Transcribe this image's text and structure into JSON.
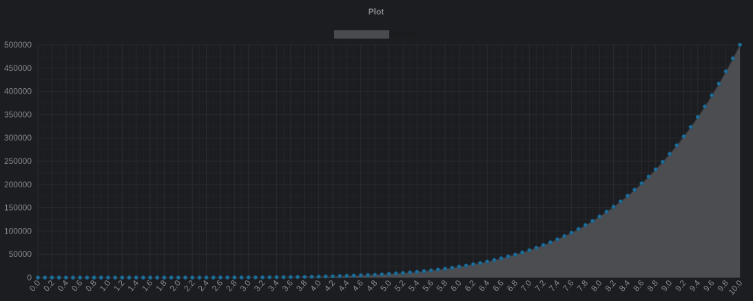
{
  "chart_data": {
    "type": "area",
    "title": "Plot",
    "xlabel": "",
    "ylabel": "",
    "legend": {
      "position": "top-center",
      "entries": [
        {
          "name": "(x^6)/2",
          "swatch_color": "#4a4b4f"
        }
      ]
    },
    "series": [
      {
        "name": "(x^6)/2",
        "formula": "(x^6)/2",
        "x_start": 0,
        "x_end": 10,
        "x_step": 0.1,
        "fill_color": "#4c4d51",
        "line_color": "#2c2d31",
        "point_color": "#1f6f9a"
      }
    ],
    "xlim": [
      0,
      10
    ],
    "ylim": [
      0,
      500000
    ],
    "y_ticks": [
      "0",
      "50000",
      "100000",
      "150000",
      "200000",
      "250000",
      "300000",
      "350000",
      "400000",
      "450000",
      "500000"
    ],
    "x_tick_labels": [
      "0.0",
      "0.2",
      "0.4",
      "0.6",
      "0.8",
      "1.0",
      "1.2",
      "1.4",
      "1.6",
      "1.8",
      "2.0",
      "2.2",
      "2.4",
      "2.6",
      "2.8",
      "3.0",
      "3.2",
      "3.4",
      "3.6",
      "3.8",
      "4.0",
      "4.2",
      "4.4",
      "4.6",
      "4.8",
      "5.0",
      "5.2",
      "5.4",
      "5.6",
      "5.8",
      "6.0",
      "6.2",
      "6.4",
      "6.6",
      "6.8",
      "7.0",
      "7.2",
      "7.4",
      "7.6",
      "7.8",
      "8.0",
      "8.2",
      "8.4",
      "8.6",
      "8.8",
      "9.0",
      "9.2",
      "9.4",
      "9.6",
      "9.8",
      "10.0"
    ],
    "grid": true,
    "colors": {
      "background": "#1c1d21",
      "grid": "#2a2b30",
      "text": "#8a8b8f"
    }
  }
}
